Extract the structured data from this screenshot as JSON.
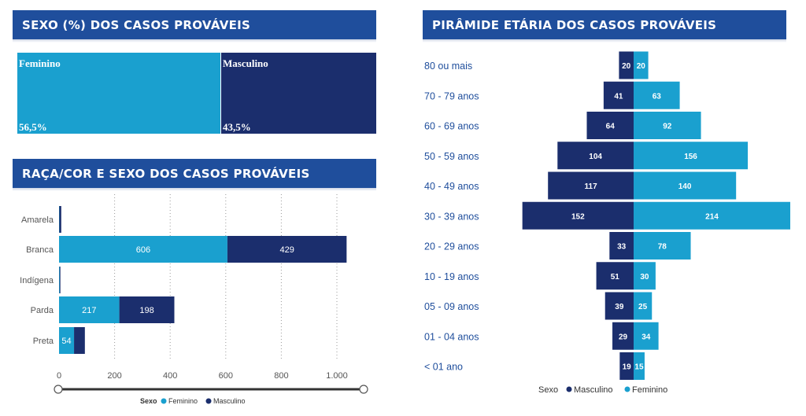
{
  "sexo_panel": {
    "title": "SEXO  (%) DOS CASOS PROVÁVEIS",
    "tiles": [
      {
        "label": "Feminino",
        "value": "56,5%",
        "fraction": 0.565,
        "color": "#1aa0cf"
      },
      {
        "label": "Masculino",
        "value": "43,5%",
        "fraction": 0.435,
        "color": "#1b2e6d"
      }
    ]
  },
  "raca_panel": {
    "title": "RAÇA/COR E SEXO DOS CASOS PROVÁVEIS",
    "legend_title": "Sexo",
    "legend_items": [
      "Feminino",
      "Masculino"
    ]
  },
  "piramide_panel": {
    "title": "PIRÂMIDE ETÁRIA DOS CASOS PROVÁVEIS",
    "legend_title": "Sexo",
    "legend_items": [
      "Masculino",
      "Feminino"
    ]
  },
  "colors": {
    "feminino": "#1aa0cf",
    "masculino": "#1b2e6d",
    "header": "#1f4e9c",
    "label": "#1f4e9c"
  },
  "chart_data": [
    {
      "type": "bar",
      "orientation": "horizontal",
      "stacked": true,
      "categories": [
        "Amarela",
        "Branca",
        "Indígena",
        "Parda",
        "Preta"
      ],
      "series": [
        {
          "name": "Feminino",
          "values": [
            1,
            606,
            2,
            217,
            54
          ],
          "labels": [
            "",
            "606",
            "",
            "217",
            "54"
          ]
        },
        {
          "name": "Masculino",
          "values": [
            7,
            429,
            1,
            198,
            39
          ],
          "labels": [
            "",
            "429",
            "",
            "198",
            ""
          ]
        }
      ],
      "xlim": [
        0,
        1100
      ],
      "xticks": [
        0,
        200,
        400,
        600,
        800,
        1000
      ],
      "xtick_labels": [
        "0",
        "200",
        "400",
        "600",
        "800",
        "1.000"
      ],
      "grid": true,
      "legend": "bottom"
    },
    {
      "type": "bar",
      "orientation": "horizontal",
      "subtype": "population-pyramid",
      "categories": [
        "80 ou mais",
        "70 - 79 anos",
        "60 - 69 anos",
        "50 - 59 anos",
        "40 - 49 anos",
        "30 - 39 anos",
        "20 - 29 anos",
        "10 - 19 anos",
        "05 - 09 anos",
        "01 - 04 anos",
        "< 01 ano"
      ],
      "series": [
        {
          "name": "Masculino",
          "values": [
            20,
            41,
            64,
            104,
            117,
            152,
            33,
            51,
            39,
            29,
            19
          ]
        },
        {
          "name": "Feminino",
          "values": [
            20,
            63,
            92,
            156,
            140,
            214,
            78,
            30,
            25,
            34,
            15
          ]
        }
      ],
      "xlim": [
        -214,
        214
      ],
      "legend": "bottom"
    }
  ]
}
